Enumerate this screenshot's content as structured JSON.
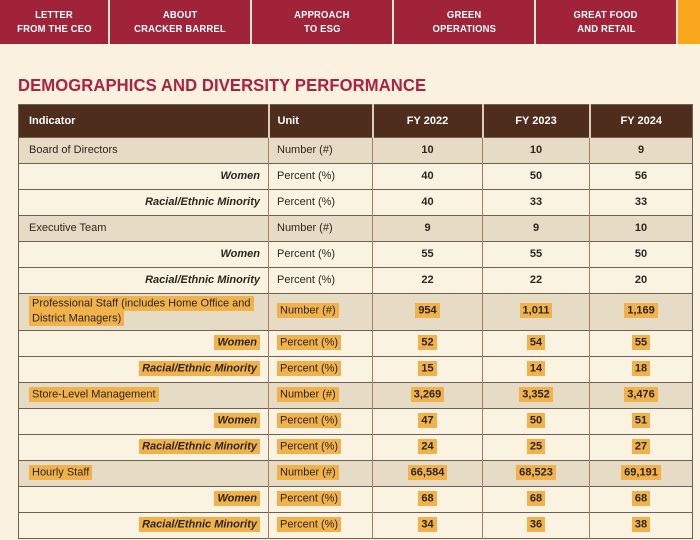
{
  "nav": {
    "bg_color": "#a02339",
    "accent_tab_color": "#f9a81e",
    "tabs": [
      {
        "line1": "LETTER",
        "line2": "FROM THE CEO"
      },
      {
        "line1": "ABOUT",
        "line2": "CRACKER BARREL"
      },
      {
        "line1": "APPROACH",
        "line2": "TO ESG"
      },
      {
        "line1": "GREEN",
        "line2": "OPERATIONS"
      },
      {
        "line1": "GREAT FOOD",
        "line2": "AND RETAIL"
      }
    ]
  },
  "page": {
    "title": "DEMOGRAPHICS AND DIVERSITY PERFORMANCE",
    "title_color": "#ad2143",
    "background_color": "#faf1de",
    "highlight_color": "#f1b24c",
    "table_header_color": "#4f2d1d"
  },
  "table": {
    "columns": [
      "Indicator",
      "Unit",
      "FY 2022",
      "FY 2023",
      "FY 2024"
    ],
    "rows": [
      {
        "indicator": "Board of Directors",
        "style": "section",
        "unit": "Number (#)",
        "values": [
          "10",
          "10",
          "9"
        ],
        "highlight": false
      },
      {
        "indicator": "Women",
        "style": "sub",
        "unit": "Percent (%)",
        "values": [
          "40",
          "50",
          "56"
        ],
        "highlight": false
      },
      {
        "indicator": "Racial/Ethnic Minority",
        "style": "sub",
        "unit": "Percent (%)",
        "values": [
          "40",
          "33",
          "33"
        ],
        "highlight": false
      },
      {
        "indicator": "Executive Team",
        "style": "section",
        "unit": "Number (#)",
        "values": [
          "9",
          "9",
          "10"
        ],
        "highlight": false
      },
      {
        "indicator": "Women",
        "style": "sub",
        "unit": "Percent (%)",
        "values": [
          "55",
          "55",
          "50"
        ],
        "highlight": false
      },
      {
        "indicator": "Racial/Ethnic Minority",
        "style": "sub",
        "unit": "Percent (%)",
        "values": [
          "22",
          "22",
          "20"
        ],
        "highlight": false
      },
      {
        "indicator": "Professional Staff (includes Home Office and District Managers)",
        "style": "section",
        "unit": "Number (#)",
        "values": [
          "954",
          "1,011",
          "1,169"
        ],
        "highlight": true
      },
      {
        "indicator": "Women",
        "style": "sub",
        "unit": "Percent (%)",
        "values": [
          "52",
          "54",
          "55"
        ],
        "highlight": true
      },
      {
        "indicator": "Racial/Ethnic Minority",
        "style": "sub",
        "unit": "Percent (%)",
        "values": [
          "15",
          "14",
          "18"
        ],
        "highlight": true
      },
      {
        "indicator": "Store-Level Management",
        "style": "section",
        "unit": "Number (#)",
        "values": [
          "3,269",
          "3,352",
          "3,476"
        ],
        "highlight": true
      },
      {
        "indicator": "Women",
        "style": "sub",
        "unit": "Percent (%)",
        "values": [
          "47",
          "50",
          "51"
        ],
        "highlight": true
      },
      {
        "indicator": "Racial/Ethnic Minority",
        "style": "sub",
        "unit": "Percent (%)",
        "values": [
          "24",
          "25",
          "27"
        ],
        "highlight": true
      },
      {
        "indicator": "Hourly Staff",
        "style": "section",
        "unit": "Number (#)",
        "values": [
          "66,584",
          "68,523",
          "69,191"
        ],
        "highlight": true
      },
      {
        "indicator": "Women",
        "style": "sub",
        "unit": "Percent (%)",
        "values": [
          "68",
          "68",
          "68"
        ],
        "highlight": true
      },
      {
        "indicator": "Racial/Ethnic Minority",
        "style": "sub",
        "unit": "Percent (%)",
        "values": [
          "34",
          "36",
          "38"
        ],
        "highlight": true
      }
    ]
  }
}
